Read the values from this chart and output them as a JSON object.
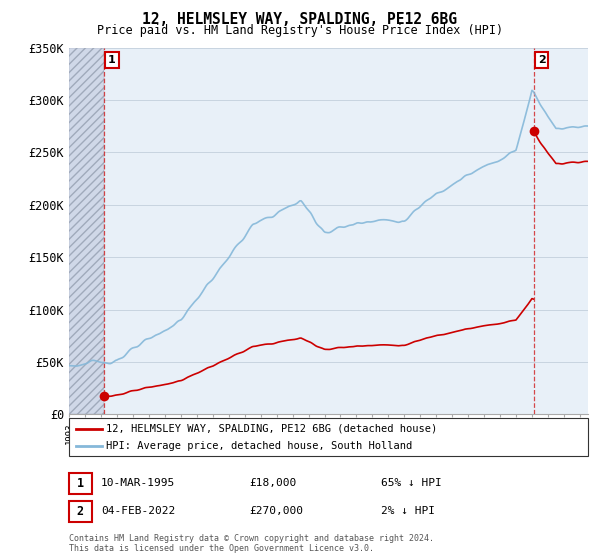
{
  "title": "12, HELMSLEY WAY, SPALDING, PE12 6BG",
  "subtitle": "Price paid vs. HM Land Registry's House Price Index (HPI)",
  "hpi_color": "#85b8d9",
  "price_color": "#cc0000",
  "background_color": "#ffffff",
  "plot_bg_color": "#e8f0f8",
  "hatch_bg_color": "#d0d8e8",
  "grid_color": "#c8d4e0",
  "ylim": [
    0,
    350000
  ],
  "yticks": [
    0,
    50000,
    100000,
    150000,
    200000,
    250000,
    300000,
    350000
  ],
  "ytick_labels": [
    "£0",
    "£50K",
    "£100K",
    "£150K",
    "£200K",
    "£250K",
    "£300K",
    "£350K"
  ],
  "legend_label_price": "12, HELMSLEY WAY, SPALDING, PE12 6BG (detached house)",
  "legend_label_hpi": "HPI: Average price, detached house, South Holland",
  "sale1_date": "10-MAR-1995",
  "sale1_price": "£18,000",
  "sale1_hpi": "65% ↓ HPI",
  "sale1_label": "1",
  "sale1_x": 1995.19,
  "sale1_y": 18000,
  "sale2_date": "04-FEB-2022",
  "sale2_price": "£270,000",
  "sale2_hpi": "2% ↓ HPI",
  "sale2_label": "2",
  "sale2_x": 2022.09,
  "sale2_y": 270000,
  "copyright_text": "Contains HM Land Registry data © Crown copyright and database right 2024.\nThis data is licensed under the Open Government Licence v3.0.",
  "xlim_start": 1993,
  "xlim_end": 2025.5
}
